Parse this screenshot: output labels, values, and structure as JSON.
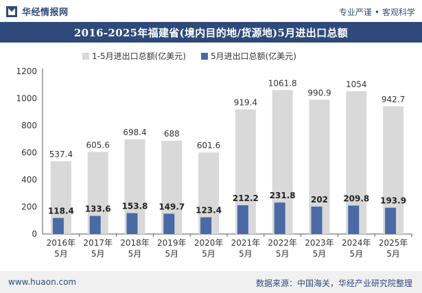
{
  "header": {
    "brand": "华经情报网",
    "tagline_a": "专业严谨",
    "tagline_b": "客观科学"
  },
  "chart_data": {
    "type": "bar",
    "title": "2016-2025年福建省(境内目的地/货源地)5月进出口总额",
    "categories": [
      "2016年\n5月",
      "2017年\n5月",
      "2018年\n5月",
      "2019年\n5月",
      "2020年\n5月",
      "2021年\n5月",
      "2022年\n5月",
      "2023年\n5月",
      "2024年\n5月",
      "2025年\n5月"
    ],
    "series": [
      {
        "name": "1-5月进出口总额(亿美元)",
        "color": "#d9d9d9",
        "values": [
          537.4,
          605.6,
          698.4,
          688,
          601.6,
          919.4,
          1061.8,
          990.9,
          1054,
          942.7
        ]
      },
      {
        "name": "5月进出口总额(亿美元)",
        "color": "#4a6aa5",
        "values": [
          118.4,
          133.6,
          153.8,
          149.7,
          123.4,
          212.2,
          231.8,
          202,
          209.8,
          193.9
        ]
      }
    ],
    "ylim": [
      0,
      1200
    ],
    "yticks": [
      0,
      200,
      400,
      600,
      800,
      1000,
      1200
    ],
    "grid": false,
    "legend": "top"
  },
  "footer": {
    "site": "www.huaon.com",
    "source": "数据来源：中国海关，华经产业研究院整理"
  },
  "colors": {
    "brand": "#2f4a7a",
    "bar_total": "#d9d9d9",
    "bar_month": "#4a6aa5"
  }
}
